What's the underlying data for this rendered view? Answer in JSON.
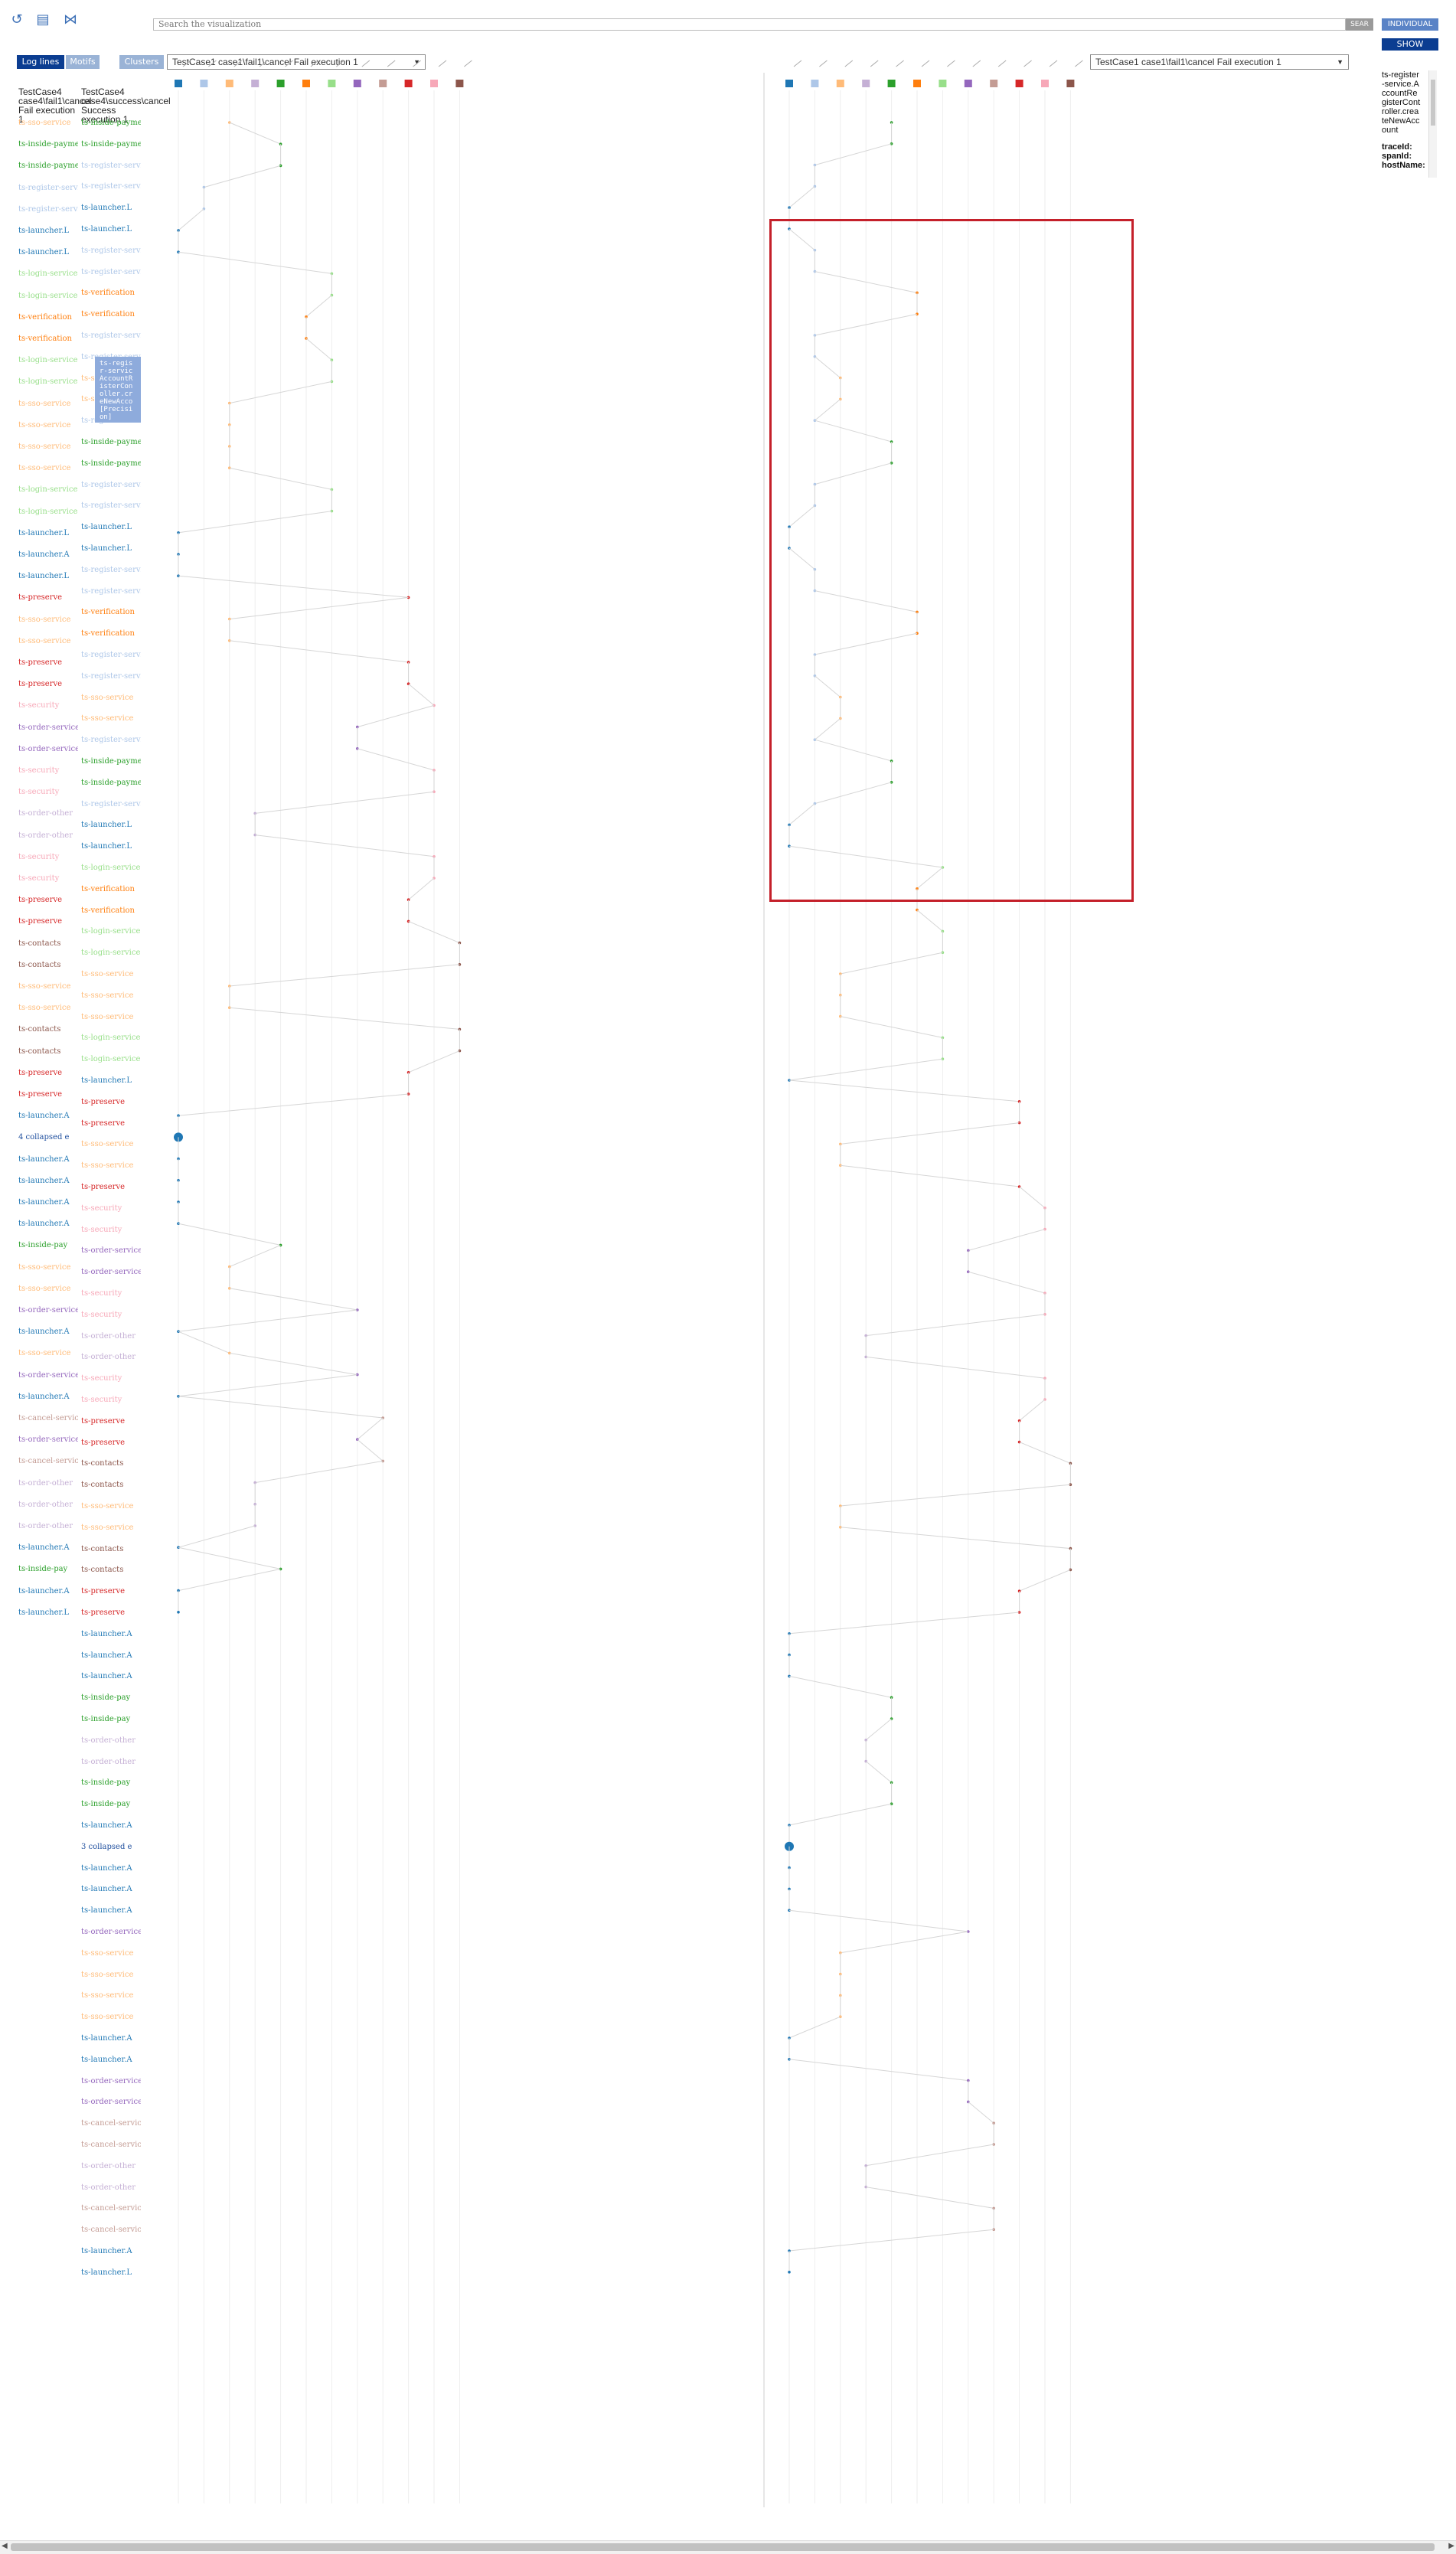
{
  "toolbar": {
    "icons": [
      "undo-icon",
      "document-icon",
      "network-icon"
    ],
    "search_placeholder": "Search the visualization",
    "search_button": "SEAR",
    "mode_button": "INDIVIDUAL",
    "show_button": "SHOW",
    "log_lines_button": "Log lines",
    "motifs_button": "Motifs",
    "clusters_button": "Clusters"
  },
  "selects": {
    "left": "TestCase1 case1\\fail1\\cancel Fail execution 1",
    "right": "TestCase1 case1\\fail1\\cancel Fail execution 1"
  },
  "case_headers": {
    "left": "TestCase4 case4\\fail1\\cancel Fail execution 1",
    "right": "TestCase4 case4\\success\\cancel Success execution 1"
  },
  "info_panel": {
    "lines": [
      "ts-register",
      "-service.A",
      "ccountRe",
      "gisterCont",
      "roller.crea",
      "teNewAcc",
      "ount"
    ],
    "fields": [
      "traceId:",
      "spanId:",
      "hostName:"
    ]
  },
  "tooltip": {
    "lines": [
      "ts-regis",
      "r-servic",
      "AccountR",
      "isterCon",
      "oller.cr",
      "eNewAcco",
      "[Precisi",
      "on]"
    ]
  },
  "services": [
    {
      "name": "ts-launcher",
      "color": "#1f77b4"
    },
    {
      "name": "ts-register",
      "color": "#aec7e8"
    },
    {
      "name": "ts-sso-service",
      "color": "#ffbb78"
    },
    {
      "name": "ts-order-other",
      "color": "#c5b0d5"
    },
    {
      "name": "ts-inside-payment",
      "color": "#2ca02c"
    },
    {
      "name": "ts-verification",
      "color": "#ff7f0e"
    },
    {
      "name": "ts-login-service",
      "color": "#98df8a"
    },
    {
      "name": "ts-order-service",
      "color": "#9467bd"
    },
    {
      "name": "ts-cancel-service",
      "color": "#c49c94"
    },
    {
      "name": "ts-preserve",
      "color": "#d62728"
    },
    {
      "name": "ts-security",
      "color": "#f7a8b8"
    },
    {
      "name": "ts-contacts",
      "color": "#8c564b"
    }
  ],
  "left_log": [
    "ts-sso-service",
    "ts-inside-payment",
    "ts-inside-payment",
    "ts-register-service",
    "ts-register-service",
    "ts-launcher.L",
    "ts-launcher.L",
    "ts-login-service",
    "ts-login-service",
    "ts-verification",
    "ts-verification",
    "ts-login-service",
    "ts-login-service",
    "ts-sso-service",
    "ts-sso-service",
    "ts-sso-service",
    "ts-sso-service",
    "ts-login-service",
    "ts-login-service",
    "ts-launcher.L",
    "ts-launcher.A",
    "ts-launcher.L",
    "ts-preserve",
    "ts-sso-service",
    "ts-sso-service",
    "ts-preserve",
    "ts-preserve",
    "ts-security",
    "ts-order-service",
    "ts-order-service",
    "ts-security",
    "ts-security",
    "ts-order-other",
    "ts-order-other",
    "ts-security",
    "ts-security",
    "ts-preserve",
    "ts-preserve",
    "ts-contacts",
    "ts-contacts",
    "ts-sso-service",
    "ts-sso-service",
    "ts-contacts",
    "ts-contacts",
    "ts-preserve",
    "ts-preserve",
    "ts-launcher.A",
    "4 collapsed e",
    "ts-launcher.A",
    "ts-launcher.A",
    "ts-launcher.A",
    "ts-launcher.A",
    "ts-inside-pay",
    "ts-sso-service",
    "ts-sso-service",
    "ts-order-service",
    "ts-launcher.A",
    "ts-sso-service",
    "ts-order-service",
    "ts-launcher.A",
    "ts-cancel-service",
    "ts-order-service",
    "ts-cancel-service",
    "ts-order-other",
    "ts-order-other",
    "ts-order-other",
    "ts-launcher.A",
    "ts-inside-pay",
    "ts-launcher.A",
    "ts-launcher.L"
  ],
  "right_log": [
    "ts-inside-payment",
    "ts-inside-payment",
    "ts-register-service",
    "ts-register-service",
    "ts-launcher.L",
    "ts-launcher.L",
    "ts-register-service",
    "ts-register-service",
    "ts-verification",
    "ts-verification",
    "ts-register-service",
    "ts-register-service",
    "ts-sso-service",
    "ts-sso-service",
    "ts-register-service",
    "ts-inside-payment",
    "ts-inside-payment",
    "ts-register-service",
    "ts-register-service",
    "ts-launcher.L",
    "ts-launcher.L",
    "ts-register-service",
    "ts-register-service",
    "ts-verification",
    "ts-verification",
    "ts-register-service",
    "ts-register-service",
    "ts-sso-service",
    "ts-sso-service",
    "ts-register-service",
    "ts-inside-payment",
    "ts-inside-payment",
    "ts-register-service",
    "ts-launcher.L",
    "ts-launcher.L",
    "ts-login-service",
    "ts-verification",
    "ts-verification",
    "ts-login-service",
    "ts-login-service",
    "ts-sso-service",
    "ts-sso-service",
    "ts-sso-service",
    "ts-login-service",
    "ts-login-service",
    "ts-launcher.L",
    "ts-preserve",
    "ts-preserve",
    "ts-sso-service",
    "ts-sso-service",
    "ts-preserve",
    "ts-security",
    "ts-security",
    "ts-order-service",
    "ts-order-service",
    "ts-security",
    "ts-security",
    "ts-order-other",
    "ts-order-other",
    "ts-security",
    "ts-security",
    "ts-preserve",
    "ts-preserve",
    "ts-contacts",
    "ts-contacts",
    "ts-sso-service",
    "ts-sso-service",
    "ts-contacts",
    "ts-contacts",
    "ts-preserve",
    "ts-preserve",
    "ts-launcher.A",
    "ts-launcher.A",
    "ts-launcher.A",
    "ts-inside-pay",
    "ts-inside-pay",
    "ts-order-other",
    "ts-order-other",
    "ts-inside-pay",
    "ts-inside-pay",
    "ts-launcher.A",
    "3 collapsed e",
    "ts-launcher.A",
    "ts-launcher.A",
    "ts-launcher.A",
    "ts-order-service",
    "ts-sso-service",
    "ts-sso-service",
    "ts-sso-service",
    "ts-sso-service",
    "ts-launcher.A",
    "ts-launcher.A",
    "ts-order-service",
    "ts-order-service",
    "ts-cancel-service",
    "ts-cancel-service",
    "ts-order-other",
    "ts-order-other",
    "ts-cancel-service",
    "ts-cancel-service",
    "ts-launcher.A",
    "ts-launcher.L"
  ]
}
